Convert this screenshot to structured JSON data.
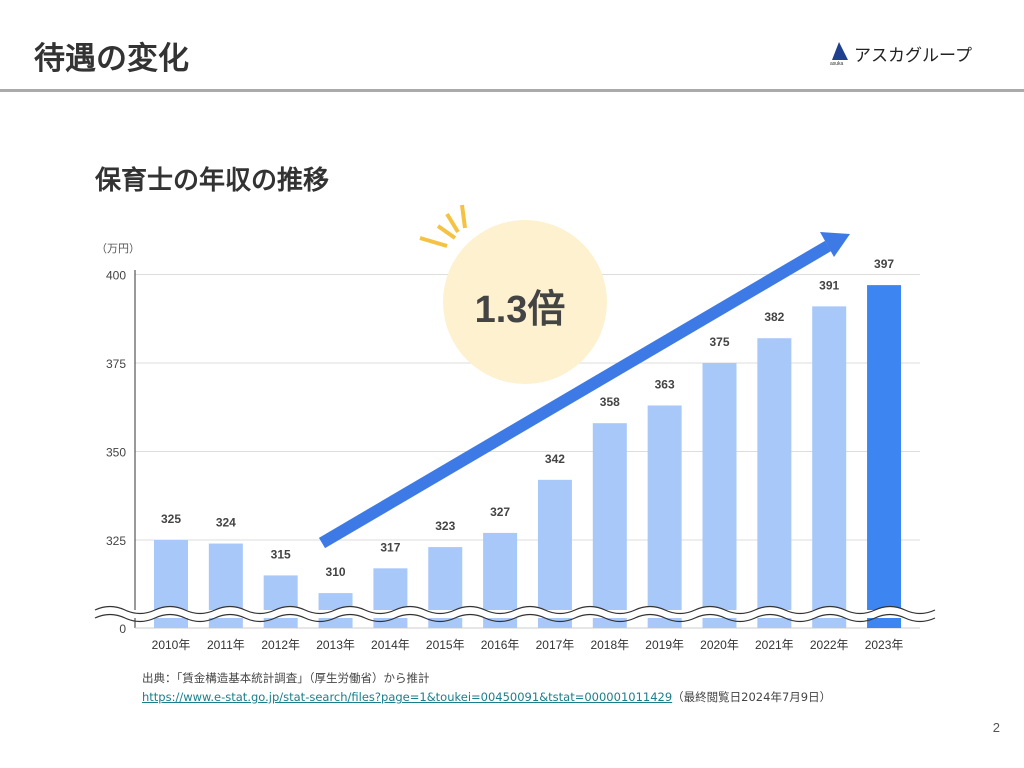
{
  "header": {
    "title": "待遇の変化",
    "logo_text": "アスカグループ",
    "logo_sub": "asuka"
  },
  "subtitle": "保育士の年収の推移",
  "badge": "1.3倍",
  "chart_data": {
    "type": "bar",
    "ylabel": "（万円）",
    "categories": [
      "2010年",
      "2011年",
      "2012年",
      "2013年",
      "2014年",
      "2015年",
      "2016年",
      "2017年",
      "2018年",
      "2019年",
      "2020年",
      "2021年",
      "2022年",
      "2023年"
    ],
    "values": [
      325,
      324,
      315,
      310,
      317,
      323,
      327,
      342,
      358,
      363,
      375,
      382,
      391,
      397
    ],
    "yticks": [
      "0",
      "325",
      "350",
      "375",
      "400"
    ],
    "ylim": [
      0,
      400
    ],
    "axis_break": true,
    "grid": true,
    "colors": {
      "bar": "#a9c8fa",
      "highlight": "#3d85f0",
      "arrow": "#3d7ae6",
      "badge": "#fdf1cf",
      "burst": "#f5c242"
    }
  },
  "source": {
    "text": "出典：「賃金構造基本統計調査」（厚生労働省）から推計",
    "url": "https://www.e-stat.go.jp/stat-search/files?page=1&toukei=00450091&tstat=000001011429",
    "accessed": "（最終閲覧日2024年7月9日）"
  },
  "page_number": "2"
}
